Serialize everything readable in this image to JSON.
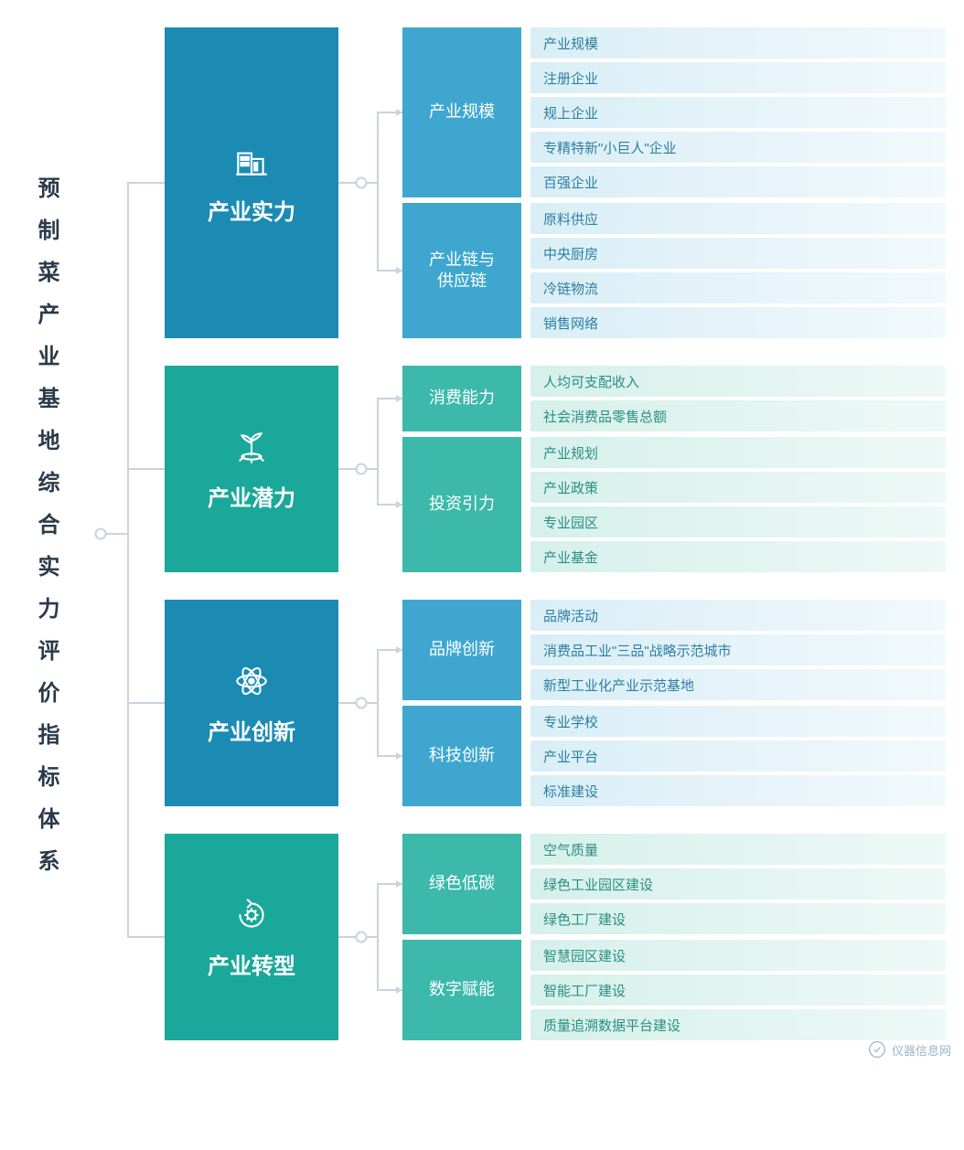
{
  "root_title": "预制菜产业基地综合实力评价指标体系",
  "colors": {
    "line": "#c8d4dc",
    "node_fill": "#ffffff",
    "root_text": "#2a3a4a"
  },
  "branches": [
    {
      "id": "strength",
      "label": "产业实力",
      "bg": "#1b8bb4",
      "l2_bg": "#3fa7cf",
      "l3_bg_from": "#d9eef6",
      "l3_bg_to": "#f2f9fc",
      "l3_text": "#2d7fa0",
      "icon": "building",
      "subs": [
        {
          "label": "产业规模",
          "items": [
            "产业规模",
            "注册企业",
            "规上企业",
            "专精特新\"小巨人\"企业",
            "百强企业"
          ]
        },
        {
          "label": "产业链与\n供应链",
          "items": [
            "原料供应",
            "中央厨房",
            "冷链物流",
            "销售网络"
          ]
        }
      ]
    },
    {
      "id": "potential",
      "label": "产业潜力",
      "bg": "#1aa89a",
      "l2_bg": "#3cb9ab",
      "l3_bg_from": "#d6f0eb",
      "l3_bg_to": "#eef9f6",
      "l3_text": "#2a8f82",
      "icon": "sprout",
      "subs": [
        {
          "label": "消费能力",
          "items": [
            "人均可支配收入",
            "社会消费品零售总额"
          ]
        },
        {
          "label": "投资引力",
          "items": [
            "产业规划",
            "产业政策",
            "专业园区",
            "产业基金"
          ]
        }
      ]
    },
    {
      "id": "innovation",
      "label": "产业创新",
      "bg": "#1b8bb4",
      "l2_bg": "#3fa7cf",
      "l3_bg_from": "#d9eef6",
      "l3_bg_to": "#f2f9fc",
      "l3_text": "#2d7fa0",
      "icon": "atom",
      "subs": [
        {
          "label": "品牌创新",
          "items": [
            "品牌活动",
            "消费品工业\"三品\"战略示范城市",
            "新型工业化产业示范基地"
          ]
        },
        {
          "label": "科技创新",
          "items": [
            "专业学校",
            "产业平台",
            "标准建设"
          ]
        }
      ]
    },
    {
      "id": "transform",
      "label": "产业转型",
      "bg": "#1aa89a",
      "l2_bg": "#3cb9ab",
      "l3_bg_from": "#d6f0eb",
      "l3_bg_to": "#eef9f6",
      "l3_text": "#2a8f82",
      "icon": "cycle",
      "subs": [
        {
          "label": "绿色低碳",
          "items": [
            "空气质量",
            "绿色工业园区建设",
            "绿色工厂建设"
          ]
        },
        {
          "label": "数字赋能",
          "items": [
            "智慧园区建设",
            "智能工厂建设",
            "质量追溯数据平台建设"
          ]
        }
      ]
    }
  ],
  "watermark": "仪器信息网"
}
